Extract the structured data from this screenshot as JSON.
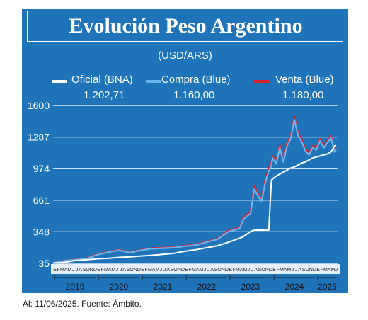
{
  "title": "Evolución Peso Argentino",
  "subtitle": "(USD/ARS)",
  "source": "Al: 11/06/2025. Fuente: Ámbito.",
  "colors": {
    "panel": "#1f74b9",
    "oficial": "#ffffff",
    "compra": "#6cb6ef",
    "venta": "#d4252f",
    "grid": "#ffffff"
  },
  "legend": [
    {
      "label": "Oficial (BNA)",
      "value": "1.202,71"
    },
    {
      "label": "Compra (Blue)",
      "value": "1.160,00"
    },
    {
      "label": "Venta (Blue)",
      "value": "1.180,00"
    }
  ],
  "chart_data": {
    "type": "line",
    "ylim": [
      35,
      1600
    ],
    "yticks": [
      "1600",
      "1287",
      "974",
      "661",
      "348",
      "35"
    ],
    "ytick_values": [
      1600,
      1287,
      974,
      661,
      348,
      35
    ],
    "grid": true,
    "month_labels": [
      "E",
      "F",
      "M",
      "A",
      "M",
      "J",
      "J",
      "A",
      "S",
      "O",
      "N",
      "D",
      "E",
      "F",
      "M",
      "A",
      "M",
      "J",
      "J",
      "A",
      "S",
      "O",
      "N",
      "D",
      "E",
      "F",
      "M",
      "A",
      "M",
      "J",
      "J",
      "A",
      "S",
      "O",
      "N",
      "D",
      "E",
      "F",
      "M",
      "A",
      "M",
      "J",
      "J",
      "A",
      "S",
      "O",
      "N",
      "D",
      "E",
      "F",
      "M",
      "A",
      "M",
      "J",
      "J",
      "A",
      "S",
      "O",
      "N",
      "D",
      "E",
      "F",
      "M",
      "A",
      "M",
      "J",
      "J",
      "A",
      "S",
      "O",
      "N",
      "D",
      "E",
      "F",
      "M",
      "A",
      "M",
      "J"
    ],
    "years": [
      "2019",
      "2020",
      "2021",
      "2022",
      "2023",
      "2024",
      "2025"
    ],
    "x_months": [
      0,
      3,
      6,
      9,
      12,
      15,
      18,
      21,
      24,
      27,
      30,
      33,
      36,
      39,
      42,
      45,
      48,
      51,
      52,
      54,
      55,
      57,
      58,
      59,
      59.7,
      60,
      61,
      62,
      63,
      64,
      65,
      66,
      67,
      68,
      69,
      70,
      71,
      72,
      73,
      74,
      75,
      76,
      77,
      77.4
    ],
    "series": [
      {
        "name": "Oficial (BNA)",
        "values": [
          38,
          45,
          63,
          70,
          80,
          85,
          95,
          100,
          108,
          115,
          125,
          135,
          155,
          170,
          190,
          210,
          245,
          285,
          300,
          350,
          365,
          365,
          365,
          365,
          860,
          870,
          900,
          920,
          940,
          960,
          980,
          990,
          1010,
          1030,
          1040,
          1060,
          1080,
          1090,
          1100,
          1110,
          1120,
          1140,
          1200,
          1202.71
        ]
      },
      {
        "name": "Compra (Blue)",
        "values": [
          38,
          60,
          70,
          80,
          120,
          145,
          165,
          140,
          165,
          180,
          185,
          190,
          205,
          215,
          245,
          275,
          350,
          380,
          470,
          530,
          770,
          650,
          830,
          950,
          1000,
          1080,
          1020,
          1180,
          1040,
          1200,
          1270,
          1460,
          1300,
          1240,
          1150,
          1110,
          1180,
          1160,
          1250,
          1180,
          1230,
          1280,
          1140,
          1160
        ]
      },
      {
        "name": "Venta (Blue)",
        "values": [
          39,
          62,
          73,
          84,
          125,
          150,
          170,
          145,
          170,
          186,
          190,
          196,
          210,
          222,
          252,
          282,
          360,
          390,
          490,
          550,
          800,
          670,
          860,
          980,
          1030,
          1100,
          1040,
          1210,
          1060,
          1230,
          1300,
          1490,
          1330,
          1265,
          1175,
          1130,
          1200,
          1180,
          1270,
          1200,
          1250,
          1300,
          1160,
          1180
        ]
      }
    ]
  }
}
